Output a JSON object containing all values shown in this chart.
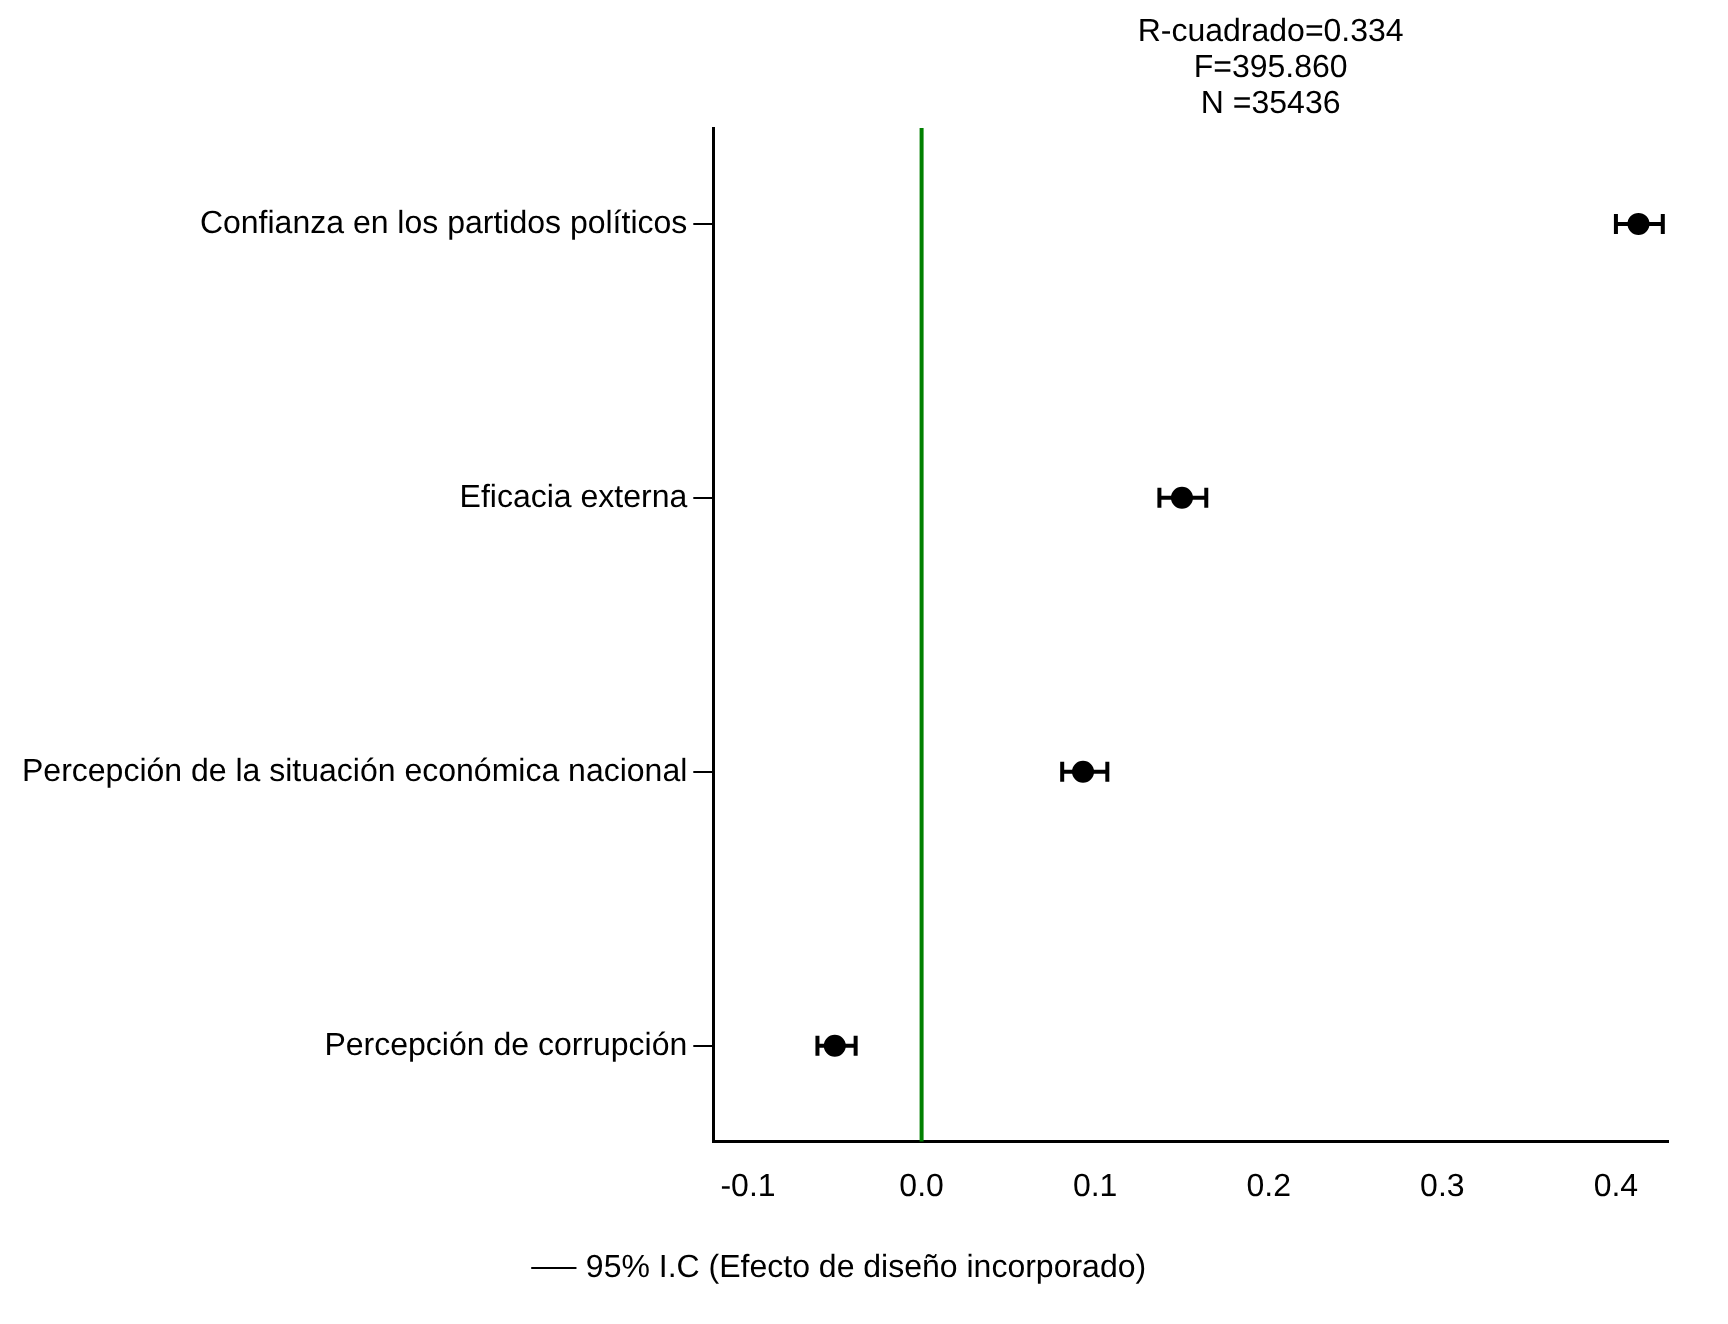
{
  "chart_data": {
    "type": "scatter",
    "orientation": "horizontal",
    "annotations": [
      "R-cuadrado=0.334",
      "F=395.860",
      "N =35436"
    ],
    "categories": [
      "Confianza en los partidos políticos",
      "Eficacia externa",
      "Percepción de la situación económica nacional",
      "Percepción de corrupción"
    ],
    "series": [
      {
        "name": "95% I.C (Efecto de diseño incorporado)",
        "color": "#000000",
        "values": [
          0.413,
          0.15,
          0.093,
          -0.05
        ],
        "errors": [
          [
            0.4,
            0.427
          ],
          [
            0.137,
            0.164
          ],
          [
            0.081,
            0.107
          ],
          [
            -0.06,
            -0.038
          ]
        ]
      }
    ],
    "xlim": [
      -0.12,
      0.43
    ],
    "xticks": [
      {
        "value": -0.1,
        "label": "-0.1"
      },
      {
        "value": 0,
        "label": "0.0"
      },
      0.1,
      0.2,
      0.3,
      0.4
    ],
    "ref_lines": [
      {
        "axis": "x",
        "value": 0,
        "color": "#008000"
      }
    ],
    "grid": false,
    "legend": "bottom",
    "marker": "circle"
  }
}
